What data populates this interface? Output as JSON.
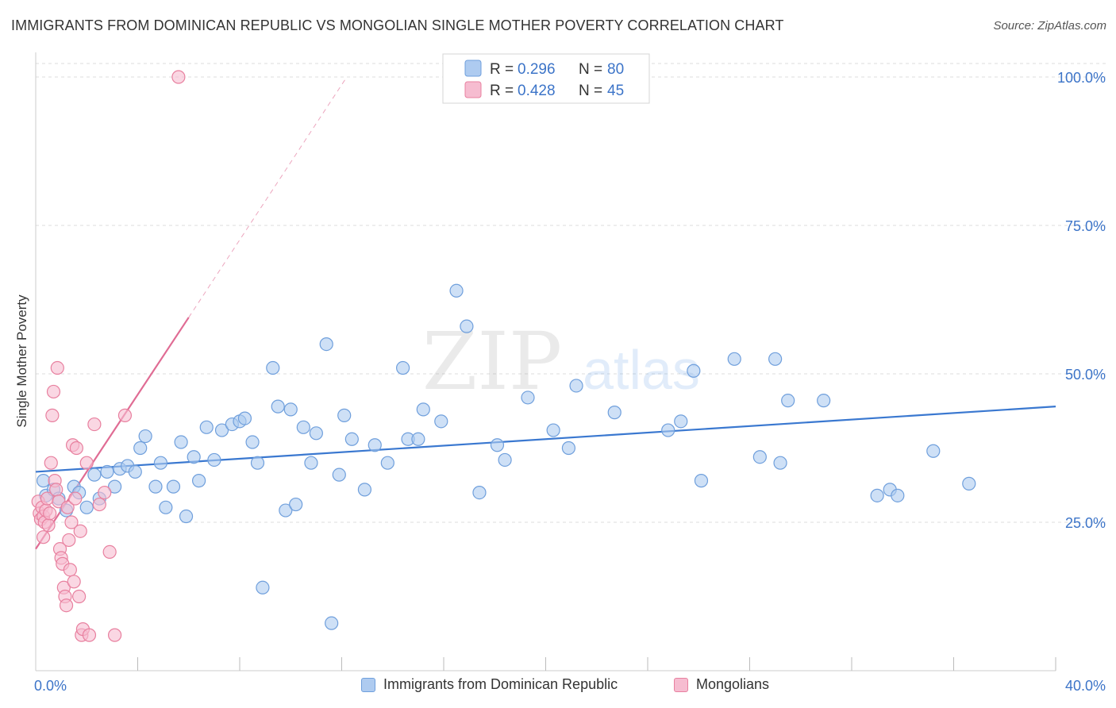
{
  "title": "IMMIGRANTS FROM DOMINICAN REPUBLIC VS MONGOLIAN SINGLE MOTHER POVERTY CORRELATION CHART",
  "source": "Source: ZipAtlas.com",
  "watermark": {
    "zip": "ZIP",
    "atlas": "atlas"
  },
  "colors": {
    "blue_fill": "#aecbf0",
    "blue_stroke": "#6f9fdc",
    "blue_line": "#3a78d0",
    "pink_fill": "#f6bcd0",
    "pink_stroke": "#e8809f",
    "pink_line": "#e06c94",
    "axis_text": "#3c74c8",
    "grid": "#dddddd"
  },
  "legend_top": [
    {
      "r_label": "R = ",
      "r_value": "0.296",
      "n_label": "N = ",
      "n_value": "80",
      "color": "blue"
    },
    {
      "r_label": "R = ",
      "r_value": "0.428",
      "n_label": "N = ",
      "n_value": "45",
      "color": "pink"
    }
  ],
  "legend_bottom": [
    {
      "label": "Immigrants from Dominican Republic",
      "color": "blue"
    },
    {
      "label": "Mongolians",
      "color": "pink"
    }
  ],
  "chart_data": {
    "type": "scatter",
    "title": "IMMIGRANTS FROM DOMINICAN REPUBLIC VS MONGOLIAN SINGLE MOTHER POVERTY CORRELATION CHART",
    "xlabel": "",
    "ylabel": "Single Mother Poverty",
    "xlim": [
      0,
      40
    ],
    "ylim": [
      0,
      100
    ],
    "x_tick_labels": [
      "0.0%",
      "40.0%"
    ],
    "y_ticks": [
      25,
      50,
      75,
      100
    ],
    "y_tick_labels": [
      "25.0%",
      "50.0%",
      "75.0%",
      "100.0%"
    ],
    "grid": true,
    "legend_position": "top-center",
    "series": [
      {
        "name": "Immigrants from Dominican Republic",
        "r": 0.296,
        "n": 80,
        "trend": {
          "x0": 0,
          "y0": 33.5,
          "x1": 40,
          "y1": 44.5
        },
        "points": [
          [
            0.3,
            32.0
          ],
          [
            0.4,
            29.5
          ],
          [
            0.7,
            30.5
          ],
          [
            0.9,
            29.0
          ],
          [
            1.2,
            27.0
          ],
          [
            1.5,
            31.0
          ],
          [
            1.7,
            30.0
          ],
          [
            2.0,
            27.5
          ],
          [
            2.3,
            33.0
          ],
          [
            2.5,
            29.0
          ],
          [
            2.8,
            33.5
          ],
          [
            3.1,
            31.0
          ],
          [
            3.3,
            34.0
          ],
          [
            3.6,
            34.5
          ],
          [
            3.9,
            33.5
          ],
          [
            4.1,
            37.5
          ],
          [
            4.3,
            39.5
          ],
          [
            4.7,
            31.0
          ],
          [
            4.9,
            35.0
          ],
          [
            5.1,
            27.5
          ],
          [
            5.4,
            31.0
          ],
          [
            5.7,
            38.5
          ],
          [
            5.9,
            26.0
          ],
          [
            6.2,
            36.0
          ],
          [
            6.4,
            32.0
          ],
          [
            6.7,
            41.0
          ],
          [
            7.0,
            35.5
          ],
          [
            7.3,
            40.5
          ],
          [
            7.7,
            41.5
          ],
          [
            8.0,
            42.0
          ],
          [
            8.2,
            42.5
          ],
          [
            8.5,
            38.5
          ],
          [
            8.7,
            35.0
          ],
          [
            8.9,
            14.0
          ],
          [
            9.3,
            51.0
          ],
          [
            9.5,
            44.5
          ],
          [
            9.8,
            27.0
          ],
          [
            10.0,
            44.0
          ],
          [
            10.2,
            28.0
          ],
          [
            10.5,
            41.0
          ],
          [
            10.8,
            35.0
          ],
          [
            11.0,
            40.0
          ],
          [
            11.4,
            55.0
          ],
          [
            11.6,
            8.0
          ],
          [
            11.9,
            33.0
          ],
          [
            12.1,
            43.0
          ],
          [
            12.4,
            39.0
          ],
          [
            12.9,
            30.5
          ],
          [
            13.3,
            38.0
          ],
          [
            13.8,
            35.0
          ],
          [
            14.4,
            51.0
          ],
          [
            14.6,
            39.0
          ],
          [
            15.0,
            39.0
          ],
          [
            15.2,
            44.0
          ],
          [
            15.9,
            42.0
          ],
          [
            16.5,
            64.0
          ],
          [
            16.9,
            58.0
          ],
          [
            17.4,
            30.0
          ],
          [
            18.1,
            38.0
          ],
          [
            18.4,
            35.5
          ],
          [
            19.3,
            46.0
          ],
          [
            20.3,
            40.5
          ],
          [
            20.9,
            37.5
          ],
          [
            21.2,
            48.0
          ],
          [
            22.7,
            43.5
          ],
          [
            24.8,
            40.5
          ],
          [
            25.3,
            42.0
          ],
          [
            25.8,
            50.5
          ],
          [
            26.1,
            32.0
          ],
          [
            27.4,
            52.5
          ],
          [
            28.4,
            36.0
          ],
          [
            29.0,
            52.5
          ],
          [
            29.2,
            35.0
          ],
          [
            29.5,
            45.5
          ],
          [
            30.9,
            45.5
          ],
          [
            33.0,
            29.5
          ],
          [
            33.5,
            30.5
          ],
          [
            33.8,
            29.5
          ],
          [
            35.2,
            37.0
          ],
          [
            36.6,
            31.5
          ]
        ]
      },
      {
        "name": "Mongolians",
        "r": 0.428,
        "n": 45,
        "trend": {
          "x0": 0,
          "y0": 20.5,
          "x1": 6.0,
          "y1": 59.5
        },
        "trend_dashed_extension": {
          "x0": 6.0,
          "y0": 59.5,
          "x1": 12.2,
          "y1": 100
        },
        "points": [
          [
            0.1,
            28.5
          ],
          [
            0.15,
            26.5
          ],
          [
            0.2,
            25.5
          ],
          [
            0.25,
            27.5
          ],
          [
            0.3,
            26.0
          ],
          [
            0.35,
            25.0
          ],
          [
            0.4,
            27.0
          ],
          [
            0.45,
            29.0
          ],
          [
            0.5,
            24.5
          ],
          [
            0.55,
            26.5
          ],
          [
            0.6,
            35.0
          ],
          [
            0.65,
            43.0
          ],
          [
            0.7,
            47.0
          ],
          [
            0.75,
            32.0
          ],
          [
            0.8,
            30.5
          ],
          [
            0.85,
            51.0
          ],
          [
            0.9,
            28.5
          ],
          [
            0.95,
            20.5
          ],
          [
            1.0,
            19.0
          ],
          [
            1.05,
            18.0
          ],
          [
            1.1,
            14.0
          ],
          [
            1.15,
            12.5
          ],
          [
            1.2,
            11.0
          ],
          [
            1.25,
            27.5
          ],
          [
            1.3,
            22.0
          ],
          [
            1.35,
            17.0
          ],
          [
            1.4,
            25.0
          ],
          [
            1.45,
            38.0
          ],
          [
            1.5,
            15.0
          ],
          [
            1.55,
            29.0
          ],
          [
            1.6,
            37.5
          ],
          [
            1.7,
            12.5
          ],
          [
            1.75,
            23.5
          ],
          [
            1.8,
            6.0
          ],
          [
            1.85,
            7.0
          ],
          [
            2.0,
            35.0
          ],
          [
            2.1,
            6.0
          ],
          [
            2.3,
            41.5
          ],
          [
            2.5,
            28.0
          ],
          [
            2.7,
            30.0
          ],
          [
            2.9,
            20.0
          ],
          [
            3.1,
            6.0
          ],
          [
            3.5,
            43.0
          ],
          [
            0.3,
            22.5
          ],
          [
            5.6,
            100.0
          ]
        ]
      }
    ]
  }
}
